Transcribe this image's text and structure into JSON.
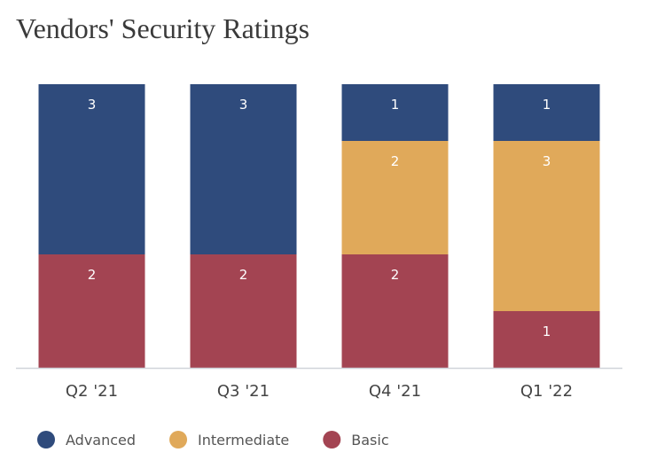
{
  "chart_data": {
    "type": "bar",
    "stacked": true,
    "title": "Vendors' Security Ratings",
    "categories": [
      "Q2 '21",
      "Q3 '21",
      "Q4 '21",
      "Q1 '22"
    ],
    "series": [
      {
        "name": "Basic",
        "color": "#a34452",
        "values": [
          2,
          2,
          2,
          1
        ]
      },
      {
        "name": "Intermediate",
        "color": "#e0a95a",
        "values": [
          0,
          0,
          2,
          3
        ]
      },
      {
        "name": "Advanced",
        "color": "#2f4b7c",
        "values": [
          3,
          3,
          1,
          1
        ]
      }
    ],
    "legend_order": [
      "Advanced",
      "Intermediate",
      "Basic"
    ],
    "legend_position": "bottom-left",
    "ylim": [
      0,
      5
    ],
    "grid": false,
    "data_labels": true
  }
}
